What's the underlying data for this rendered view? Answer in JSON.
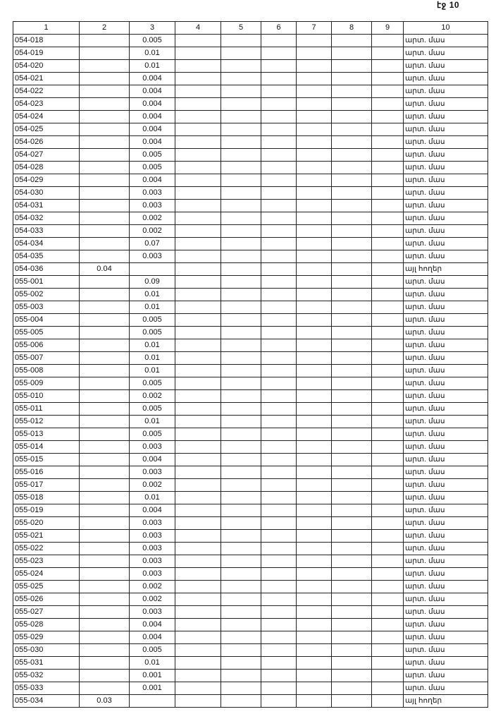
{
  "page_label": "էջ 10",
  "columns": [
    "1",
    "2",
    "3",
    "4",
    "5",
    "6",
    "7",
    "8",
    "9",
    "10"
  ],
  "rows": [
    [
      "054-018",
      "",
      "0.005",
      "արտ. մաս"
    ],
    [
      "054-019",
      "",
      "0.01",
      "արտ. մաս"
    ],
    [
      "054-020",
      "",
      "0.01",
      "արտ. մաս"
    ],
    [
      "054-021",
      "",
      "0.004",
      "արտ. մաս"
    ],
    [
      "054-022",
      "",
      "0.004",
      "արտ. մաս"
    ],
    [
      "054-023",
      "",
      "0.004",
      "արտ. մաս"
    ],
    [
      "054-024",
      "",
      "0.004",
      "արտ. մաս"
    ],
    [
      "054-025",
      "",
      "0.004",
      "արտ. մաս"
    ],
    [
      "054-026",
      "",
      "0.004",
      "արտ. մաս"
    ],
    [
      "054-027",
      "",
      "0.005",
      "արտ. մաս"
    ],
    [
      "054-028",
      "",
      "0.005",
      "արտ. մաս"
    ],
    [
      "054-029",
      "",
      "0.004",
      "արտ. մաս"
    ],
    [
      "054-030",
      "",
      "0.003",
      "արտ. մաս"
    ],
    [
      "054-031",
      "",
      "0.003",
      "արտ. մաս"
    ],
    [
      "054-032",
      "",
      "0.002",
      "արտ. մաս"
    ],
    [
      "054-033",
      "",
      "0.002",
      "արտ. մաս"
    ],
    [
      "054-034",
      "",
      "0.07",
      "արտ. մաս"
    ],
    [
      "054-035",
      "",
      "0.003",
      "արտ. մաս"
    ],
    [
      "054-036",
      "0.04",
      "",
      "այլ հողեր"
    ],
    [
      "055-001",
      "",
      "0.09",
      "արտ. մաս"
    ],
    [
      "055-002",
      "",
      "0.01",
      "արտ. մաս"
    ],
    [
      "055-003",
      "",
      "0.01",
      "արտ. մաս"
    ],
    [
      "055-004",
      "",
      "0.005",
      "արտ. մաս"
    ],
    [
      "055-005",
      "",
      "0.005",
      "արտ. մաս"
    ],
    [
      "055-006",
      "",
      "0.01",
      "արտ. մաս"
    ],
    [
      "055-007",
      "",
      "0.01",
      "արտ. մաս"
    ],
    [
      "055-008",
      "",
      "0.01",
      "արտ. մաս"
    ],
    [
      "055-009",
      "",
      "0.005",
      "արտ. մաս"
    ],
    [
      "055-010",
      "",
      "0.002",
      "արտ. մաս"
    ],
    [
      "055-011",
      "",
      "0.005",
      "արտ. մաս"
    ],
    [
      "055-012",
      "",
      "0.01",
      "արտ. մաս"
    ],
    [
      "055-013",
      "",
      "0.005",
      "արտ. մաս"
    ],
    [
      "055-014",
      "",
      "0.003",
      "արտ. մաս"
    ],
    [
      "055-015",
      "",
      "0.004",
      "արտ. մաս"
    ],
    [
      "055-016",
      "",
      "0.003",
      "արտ. մաս"
    ],
    [
      "055-017",
      "",
      "0.002",
      "արտ. մաս"
    ],
    [
      "055-018",
      "",
      "0.01",
      "արտ. մաս"
    ],
    [
      "055-019",
      "",
      "0.004",
      "արտ. մաս"
    ],
    [
      "055-020",
      "",
      "0.003",
      "արտ. մաս"
    ],
    [
      "055-021",
      "",
      "0.003",
      "արտ. մաս"
    ],
    [
      "055-022",
      "",
      "0.003",
      "արտ. մաս"
    ],
    [
      "055-023",
      "",
      "0.003",
      "արտ. մաս"
    ],
    [
      "055-024",
      "",
      "0.003",
      "արտ. մաս"
    ],
    [
      "055-025",
      "",
      "0.002",
      "արտ. մաս"
    ],
    [
      "055-026",
      "",
      "0.002",
      "արտ. մաս"
    ],
    [
      "055-027",
      "",
      "0.003",
      "արտ. մաս"
    ],
    [
      "055-028",
      "",
      "0.004",
      "արտ. մաս"
    ],
    [
      "055-029",
      "",
      "0.004",
      "արտ. մաս"
    ],
    [
      "055-030",
      "",
      "0.005",
      "արտ. մաս"
    ],
    [
      "055-031",
      "",
      "0.01",
      "արտ. մաս"
    ],
    [
      "055-032",
      "",
      "0.001",
      "արտ. մաս"
    ],
    [
      "055-033",
      "",
      "0.001",
      "արտ. մաս"
    ],
    [
      "055-034",
      "0.03",
      "",
      "այլ հողեր"
    ]
  ]
}
